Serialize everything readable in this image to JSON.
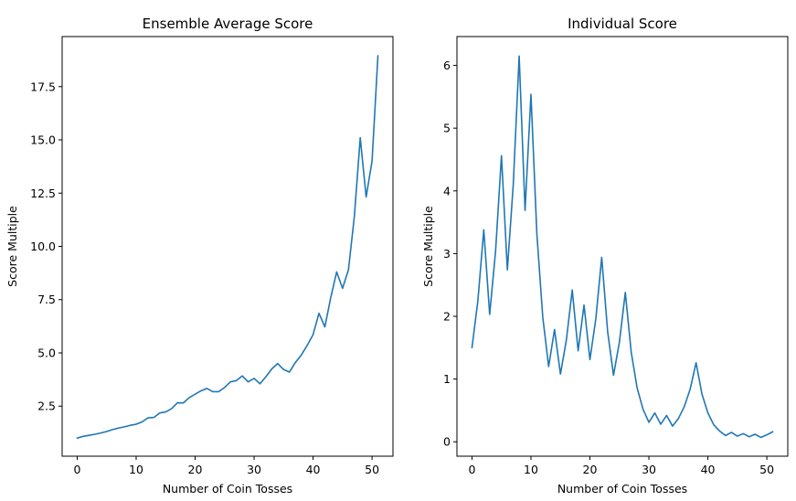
{
  "chart_data": [
    {
      "type": "line",
      "title": "Ensemble Average Score",
      "xlabel": "Number of Coin Tosses",
      "ylabel": "Score Multiple",
      "xlim": [
        -2.55,
        53.55
      ],
      "ylim": [
        0.15,
        19.85
      ],
      "xticks": [
        0,
        10,
        20,
        30,
        40,
        50
      ],
      "yticks": [
        2.5,
        5.0,
        7.5,
        10.0,
        12.5,
        15.0,
        17.5
      ],
      "ytick_labels": [
        "2.5",
        "5.0",
        "7.5",
        "10.0",
        "12.5",
        "15.0",
        "17.5"
      ],
      "series": [
        {
          "color": "#1f77b4",
          "x": [
            0,
            1,
            2,
            3,
            4,
            5,
            6,
            7,
            8,
            9,
            10,
            11,
            12,
            13,
            14,
            15,
            16,
            17,
            18,
            19,
            20,
            21,
            22,
            23,
            24,
            25,
            26,
            27,
            28,
            29,
            30,
            31,
            32,
            33,
            34,
            35,
            36,
            37,
            38,
            39,
            40,
            41,
            42,
            43,
            44,
            45,
            46,
            47,
            48,
            49,
            50,
            51
          ],
          "y": [
            1.0,
            1.08,
            1.13,
            1.18,
            1.24,
            1.31,
            1.4,
            1.47,
            1.53,
            1.6,
            1.65,
            1.76,
            1.95,
            1.97,
            2.18,
            2.23,
            2.38,
            2.66,
            2.65,
            2.9,
            3.06,
            3.22,
            3.33,
            3.18,
            3.18,
            3.38,
            3.64,
            3.7,
            3.92,
            3.64,
            3.8,
            3.55,
            3.88,
            4.25,
            4.5,
            4.22,
            4.1,
            4.55,
            4.9,
            5.35,
            5.86,
            6.86,
            6.22,
            7.6,
            8.8,
            8.03,
            8.9,
            11.4,
            15.1,
            12.32,
            14.0,
            18.95
          ]
        }
      ]
    },
    {
      "type": "line",
      "title": "Individual Score",
      "xlabel": "Number of Coin Tosses",
      "ylabel": "Score Multiple",
      "xlim": [
        -2.55,
        53.55
      ],
      "ylim": [
        -0.23,
        6.46
      ],
      "xticks": [
        0,
        10,
        20,
        30,
        40,
        50
      ],
      "yticks": [
        0,
        1,
        2,
        3,
        4,
        5,
        6
      ],
      "ytick_labels": [
        "0",
        "1",
        "2",
        "3",
        "4",
        "5",
        "6"
      ],
      "series": [
        {
          "color": "#1f77b4",
          "x": [
            0,
            1,
            2,
            3,
            4,
            5,
            6,
            7,
            8,
            9,
            10,
            11,
            12,
            13,
            14,
            15,
            16,
            17,
            18,
            19,
            20,
            21,
            22,
            23,
            24,
            25,
            26,
            27,
            28,
            29,
            30,
            31,
            32,
            33,
            34,
            35,
            36,
            37,
            38,
            39,
            40,
            41,
            42,
            43,
            44,
            45,
            46,
            47,
            48,
            49,
            50,
            51
          ],
          "y": [
            1.5,
            2.25,
            3.38,
            2.03,
            3.04,
            4.56,
            2.74,
            4.1,
            6.15,
            3.69,
            5.54,
            3.32,
            1.99,
            1.2,
            1.79,
            1.08,
            1.62,
            2.42,
            1.45,
            2.18,
            1.31,
            1.96,
            2.94,
            1.76,
            1.06,
            1.59,
            2.38,
            1.43,
            0.86,
            0.52,
            0.31,
            0.46,
            0.28,
            0.42,
            0.25,
            0.37,
            0.56,
            0.84,
            1.26,
            0.76,
            0.46,
            0.27,
            0.17,
            0.1,
            0.15,
            0.09,
            0.13,
            0.08,
            0.12,
            0.07,
            0.11,
            0.16
          ]
        }
      ]
    }
  ]
}
